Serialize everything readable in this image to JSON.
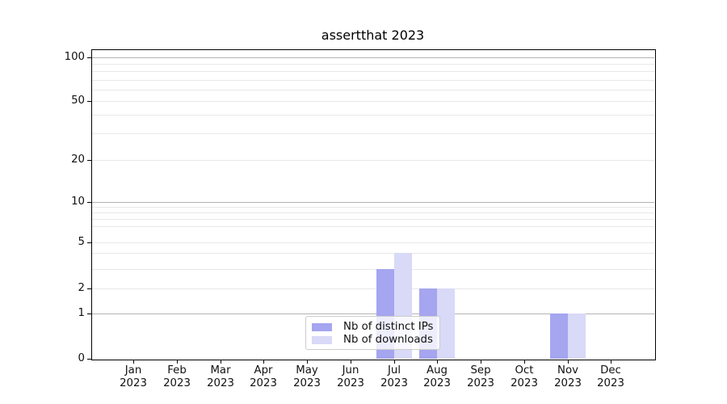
{
  "figure": {
    "title": "assertthat 2023"
  },
  "chart_data": {
    "type": "bar",
    "title": "assertthat 2023",
    "categories": [
      "Jan",
      "Feb",
      "Mar",
      "Apr",
      "May",
      "Jun",
      "Jul",
      "Aug",
      "Sep",
      "Oct",
      "Nov",
      "Dec"
    ],
    "category_year": "2023",
    "series": [
      {
        "name": "Nb of distinct IPs",
        "color": "#a5a5f0",
        "values": [
          0,
          0,
          0,
          0,
          0,
          0,
          3,
          2,
          0,
          0,
          1,
          0
        ]
      },
      {
        "name": "Nb of downloads",
        "color": "#d9d9f8",
        "values": [
          0,
          0,
          0,
          0,
          0,
          0,
          4,
          2,
          0,
          0,
          1,
          0
        ]
      }
    ],
    "xlabel": "",
    "ylabel": "",
    "y_axis": {
      "scale": "symlog",
      "tick_values": [
        0,
        1,
        2,
        5,
        10,
        20,
        50,
        100
      ],
      "tick_labels": [
        "0",
        "1",
        "2",
        "5",
        "10",
        "20",
        "50",
        "100"
      ],
      "major_gridlines": [
        1,
        10,
        100
      ],
      "minor_gridlines": [
        2,
        3,
        4,
        5,
        6,
        7,
        8,
        9,
        20,
        30,
        40,
        50,
        60,
        70,
        80,
        90
      ],
      "ylim": [
        0,
        110
      ]
    },
    "legend": {
      "position": "lower center",
      "entries": [
        "Nb of distinct IPs",
        "Nb of downloads"
      ]
    },
    "grid": true
  },
  "colors": {
    "background": "#ffffff",
    "axis": "#000000",
    "major_grid": "#b3b3b3",
    "minor_grid": "#e8e8e8",
    "text": "#111111",
    "legend_border": "#cccccc",
    "series1": "#a5a5f0",
    "series2": "#d9d9f8"
  }
}
